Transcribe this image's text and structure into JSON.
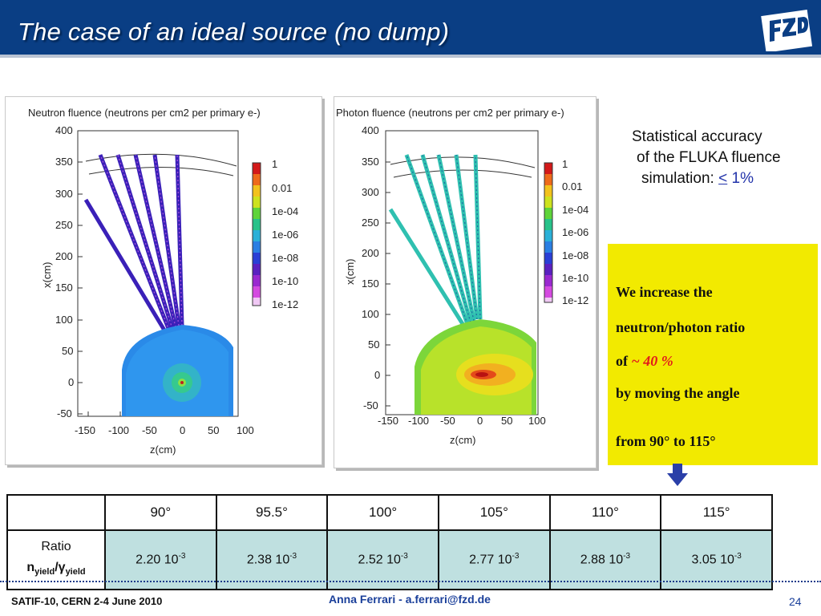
{
  "slide": {
    "title": "The case of an ideal source (no dump)",
    "page_number": "24"
  },
  "plots": {
    "neutron": {
      "title": "Neutron fluence (neutrons per cm2 per primary e-)",
      "ylabel": "x(cm)",
      "xlabel": "z(cm)",
      "y_ticks": [
        "400",
        "350",
        "300",
        "250",
        "200",
        "150",
        "100",
        "50",
        "0",
        "-50"
      ],
      "x_ticks": [
        "-150",
        "-100",
        "-50",
        "0",
        "50",
        "100"
      ],
      "colorbar_ticks": [
        "1",
        "0.01",
        "1e-04",
        "1e-06",
        "1e-08",
        "1e-10",
        "1e-12"
      ]
    },
    "photon": {
      "title": "Photon fluence (neutrons per cm2 per primary e-)",
      "ylabel": "x(cm)",
      "xlabel": "z(cm)",
      "y_ticks": [
        "400",
        "350",
        "300",
        "250",
        "200",
        "150",
        "100",
        "50",
        "0",
        "-50"
      ],
      "x_ticks": [
        "-150",
        "-100",
        "-50",
        "0",
        "50",
        "100"
      ],
      "colorbar_ticks": [
        "1",
        "0.01",
        "1e-04",
        "1e-06",
        "1e-08",
        "1e-10",
        "1e-12"
      ]
    }
  },
  "stat_note": {
    "line1": "Statistical accuracy",
    "line2": "of the FLUKA fluence",
    "line3_prefix": "simulation:  ",
    "line3_sym": "<",
    "line3_value": " 1%"
  },
  "yellow_box": {
    "line1": "We increase the",
    "line2": "neutron/photon  ratio",
    "line3_prefix": "of  ",
    "line3_value": "~ 40 %",
    "line4": "by moving the angle",
    "line5": "from 90° to 115°"
  },
  "table": {
    "headers": [
      "90°",
      "95.5°",
      "100°",
      "105°",
      "110°",
      "115°"
    ],
    "row_label_line1": "Ratio",
    "row_label_n": "n",
    "row_label_sub1": "yield",
    "row_label_slash": "/",
    "row_label_gamma": "γ",
    "row_label_sub2": "yield",
    "values": [
      "2.20 10",
      "2.38 10",
      "2.52 10",
      "2.77 10",
      "2.88 10",
      "3.05 10"
    ],
    "exponent": "-3"
  },
  "footer": {
    "left": "SATIF-10, CERN  2-4 June 2010",
    "center": "Anna Ferrari  -   a.ferrari@fzd.de"
  },
  "colors": {
    "header_bg": "#0a3e84",
    "yellow_box": "#f2ea00",
    "table_cell": "#bfe0e0",
    "footer_text": "#1a3f9a",
    "highlight_red": "#e21b1b"
  }
}
